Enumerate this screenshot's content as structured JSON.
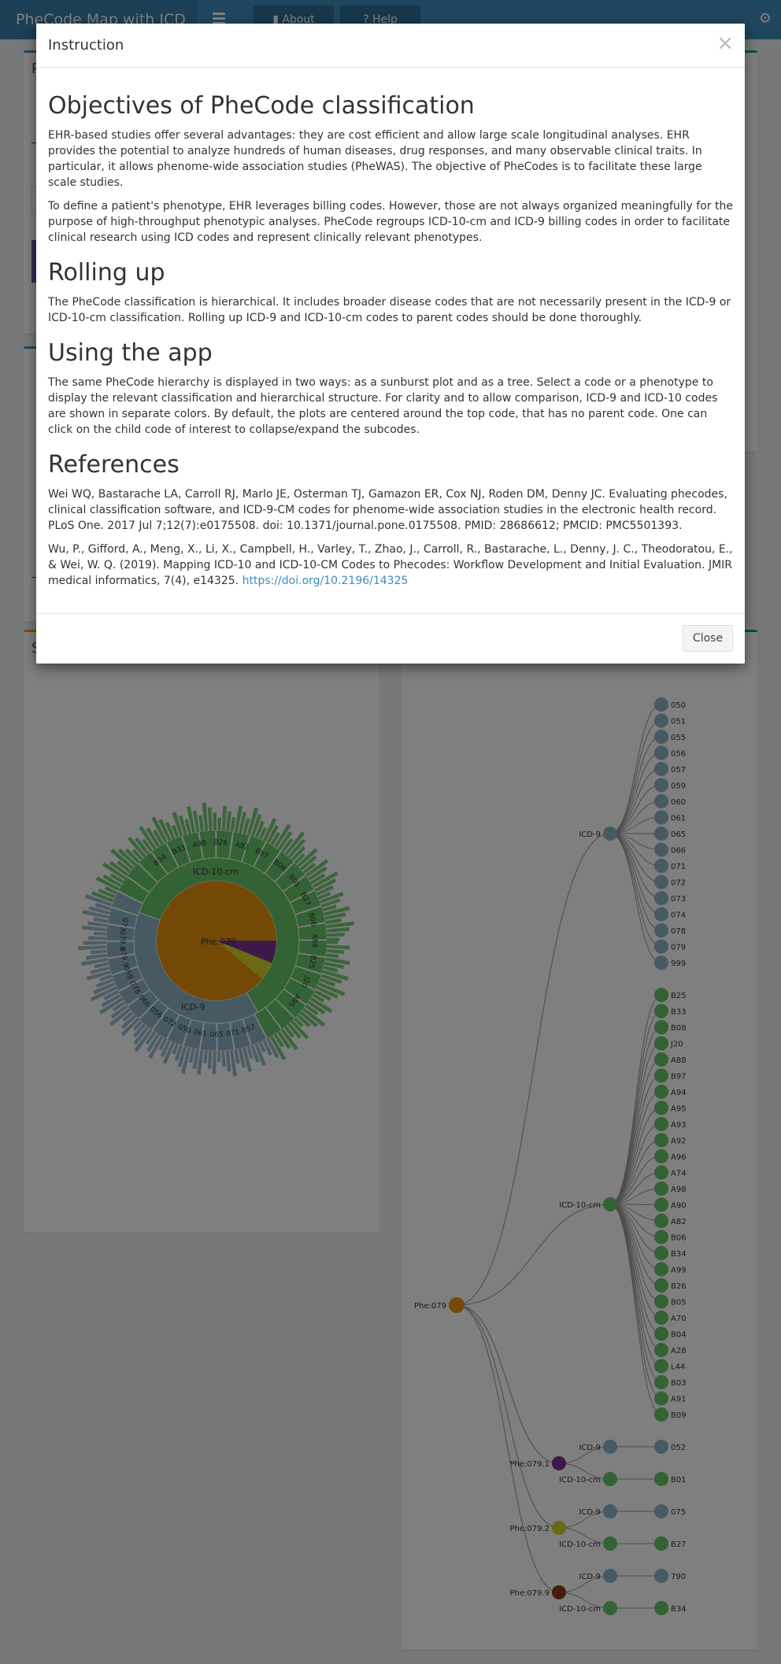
{
  "header": {
    "title": "PheCode Map with ICD",
    "about_label": "About",
    "help_label": "Help"
  },
  "background": {
    "box_title_1": "P",
    "box_title_2": "S"
  },
  "colors": {
    "brand_blue": "#3c8dbc",
    "icd9": "#8fb4c6",
    "icd10": "#67c468",
    "phe_root": "#e8930c",
    "phe_0791": "#7b3294",
    "phe_0792": "#d9d32a",
    "phe_0799": "#8b3a1e"
  },
  "sunburst": {
    "root_label": "Phe:079",
    "ring_icd10_label": "ICD-10-cm",
    "ring_icd9_label": "ICD-9",
    "icd10_labels": [
      "B34",
      "B33",
      "A98",
      "B26",
      "A92",
      "B97",
      "B08",
      "B01",
      "B27",
      "B06",
      "A88",
      "B25",
      "J20",
      "A95"
    ],
    "icd9_labels": [
      "073",
      "079.8",
      "079.9",
      "059",
      "078",
      "066",
      "056",
      "072",
      "050",
      "061",
      "065",
      "071",
      "057"
    ]
  },
  "tree": {
    "root": "Phe:079",
    "icd9_group_label": "ICD-9",
    "icd10_group_label": "ICD-10-cm",
    "icd9_codes": [
      "050",
      "051",
      "055",
      "056",
      "057",
      "059",
      "060",
      "061",
      "065",
      "066",
      "071",
      "072",
      "073",
      "074",
      "078",
      "079",
      "999"
    ],
    "icd10_codes": [
      "B25",
      "B33",
      "B08",
      "J20",
      "A88",
      "B97",
      "A94",
      "A95",
      "A93",
      "A92",
      "A96",
      "A74",
      "A98",
      "A90",
      "A82",
      "B06",
      "B34",
      "A99",
      "B26",
      "B05",
      "A70",
      "B04",
      "A28",
      "L44",
      "B03",
      "A91",
      "B09"
    ],
    "subphenotypes": [
      {
        "label": "Phe:079.1",
        "icd9": "052",
        "icd10": "B01"
      },
      {
        "label": "Phe:079.2",
        "icd9": "075",
        "icd10": "B27"
      },
      {
        "label": "Phe:079.9",
        "icd9": "790",
        "icd10": "B34"
      }
    ]
  },
  "modal": {
    "title": "Instruction",
    "close_x": "×",
    "sections": [
      {
        "heading": "Objectives of PheCode classification",
        "paragraphs": [
          "EHR-based studies offer several advantages: they are cost efficient and allow large scale longitudinal analyses. EHR provides the potential to analyze hundreds of human diseases, drug responses, and many observable clinical traits. In particular, it allows phenome-wide association studies (PheWAS). The objective of PheCodes is to facilitate these large scale studies.",
          "To define a patient's phenotype, EHR leverages billing codes. However, those are not always organized meaningfully for the purpose of high-throughput phenotypic analyses. PheCode regroups ICD-10-cm and ICD-9 billing codes in order to facilitate clinical research using ICD codes and represent clinically relevant phenotypes."
        ]
      },
      {
        "heading": "Rolling up",
        "paragraphs": [
          "The PheCode classification is hierarchical. It includes broader disease codes that are not necessarily present in the ICD-9 or ICD-10-cm classification. Rolling up ICD-9 and ICD-10-cm codes to parent codes should be done thoroughly."
        ]
      },
      {
        "heading": "Using the app",
        "paragraphs": [
          "The same PheCode hierarchy is displayed in two ways: as a sunburst plot and as a tree. Select a code or a phenotype to display the relevant classification and hierarchical structure. For clarity and to allow comparison, ICD-9 and ICD-10 codes are shown in separate colors. By default, the plots are centered around the top code, that has no parent code. One can click on the child code of interest to collapse/expand the subcodes."
        ]
      },
      {
        "heading": "References",
        "paragraphs": [
          "Wei WQ, Bastarache LA, Carroll RJ, Marlo JE, Osterman TJ, Gamazon ER, Cox NJ, Roden DM, Denny JC. Evaluating phecodes, clinical classification software, and ICD-9-CM codes for phenome-wide association studies in the electronic health record. PLoS One. 2017 Jul 7;12(7):e0175508. doi: 10.1371/journal.pone.0175508. PMID: 28686612; PMCID: PMC5501393.",
          "Wu, P., Gifford, A., Meng, X., Li, X., Campbell, H., Varley, T., Zhao, J., Carroll, R., Bastarache, L., Denny, J. C., Theodoratou, E., & Wei, W. Q. (2019). Mapping ICD-10 and ICD-10-CM Codes to Phecodes: Workflow Development and Initial Evaluation. JMIR medical informatics, 7(4), e14325."
        ]
      }
    ],
    "ref_link": "https://doi.org/10.2196/14325",
    "close_button": "Close"
  }
}
